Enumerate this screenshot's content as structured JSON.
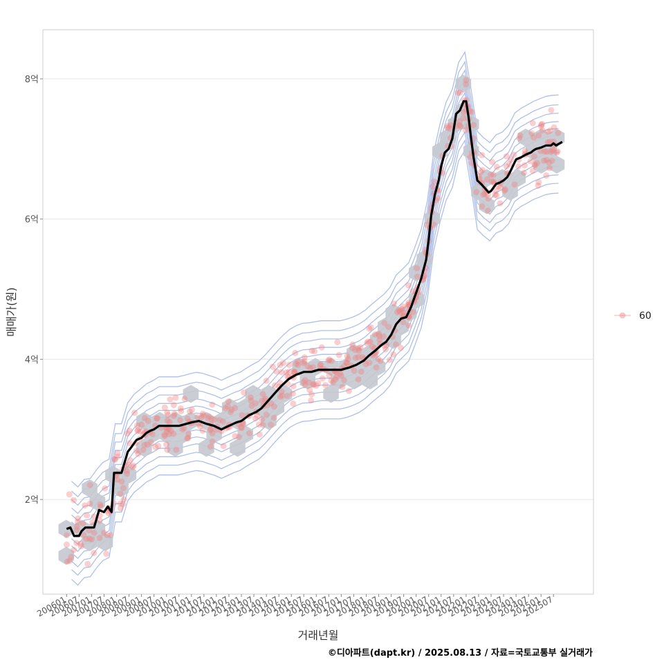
{
  "chart_data": {
    "type": "scatter",
    "xlabel": "거래년월",
    "ylabel": "매매가(원)",
    "caption": "©디아파트(dapt.kr) / 2025.08.13 / 자료=국토교통부 실거래가",
    "legend": {
      "position": "right",
      "entries": [
        "60"
      ]
    },
    "grid": true,
    "x_ticks": [
      "200601",
      "200607",
      "200701",
      "200707",
      "200801",
      "200807",
      "200901",
      "200907",
      "201001",
      "201007",
      "201101",
      "201107",
      "201201",
      "201207",
      "201301",
      "201307",
      "201401",
      "201407",
      "201501",
      "201507",
      "201601",
      "201607",
      "201701",
      "201707",
      "201801",
      "201807",
      "201901",
      "201907",
      "202001",
      "202007",
      "202101",
      "202107",
      "202201",
      "202207",
      "202301",
      "202307",
      "202401",
      "202407",
      "202501",
      "202507"
    ],
    "y_ticks": [
      "2억",
      "4억",
      "6억",
      "8억"
    ],
    "y_tick_values": [
      2,
      4,
      6,
      8
    ],
    "ylim": [
      0.65,
      8.7
    ],
    "xlim": [
      2005.05,
      2027.1
    ],
    "colors": {
      "points": "#f08080",
      "hex": "#c4c9cf",
      "line": "#000000",
      "contour": "#aebfe8",
      "grid": "#e6e6e6"
    },
    "trend_line": {
      "name": "moving-average",
      "x": [
        2006.0,
        2006.15,
        2006.3,
        2006.5,
        2006.6,
        2006.75,
        2006.9,
        2007.1,
        2007.3,
        2007.5,
        2007.65,
        2007.8,
        2007.9,
        2008.05,
        2008.2,
        2008.3,
        2008.45,
        2008.6,
        2008.8,
        2009.0,
        2009.2,
        2009.35,
        2009.5,
        2009.7,
        2010.0,
        2010.2,
        2010.5,
        2010.8,
        2011.0,
        2011.3,
        2011.6,
        2011.9,
        2012.2,
        2012.5,
        2012.8,
        2013.0,
        2013.3,
        2013.6,
        2013.8,
        2014.0,
        2014.3,
        2014.6,
        2014.9,
        2015.2,
        2015.5,
        2015.8,
        2016.1,
        2016.4,
        2016.7,
        2017.0,
        2017.3,
        2017.6,
        2017.9,
        2018.1,
        2018.35,
        2018.6,
        2018.8,
        2019.0,
        2019.2,
        2019.4,
        2019.6,
        2019.8,
        2020.0,
        2020.2,
        2020.4,
        2020.5,
        2020.6,
        2020.75,
        2020.9,
        2021.0,
        2021.15,
        2021.3,
        2021.45,
        2021.6,
        2021.75,
        2021.9,
        2022.0,
        2022.1,
        2022.2,
        2022.3,
        2022.45,
        2022.6,
        2022.8,
        2022.9,
        2023.0,
        2023.1,
        2023.2,
        2023.35,
        2023.5,
        2023.65,
        2023.8,
        2024.0,
        2024.2,
        2024.4,
        2024.6,
        2024.7,
        2024.8,
        2025.0,
        2025.2,
        2025.4,
        2025.5,
        2025.6,
        2025.75,
        2025.85
      ],
      "y": [
        1.58,
        1.6,
        1.48,
        1.48,
        1.55,
        1.6,
        1.6,
        1.6,
        1.85,
        1.82,
        1.9,
        1.82,
        2.38,
        2.38,
        2.38,
        2.5,
        2.68,
        2.75,
        2.85,
        2.88,
        2.95,
        2.98,
        3.0,
        3.05,
        3.05,
        3.05,
        3.05,
        3.08,
        3.1,
        3.12,
        3.08,
        3.05,
        3.0,
        3.05,
        3.1,
        3.12,
        3.2,
        3.25,
        3.3,
        3.38,
        3.5,
        3.62,
        3.72,
        3.78,
        3.82,
        3.82,
        3.85,
        3.85,
        3.85,
        3.85,
        3.88,
        3.92,
        3.98,
        4.05,
        4.12,
        4.2,
        4.25,
        4.35,
        4.5,
        4.58,
        4.6,
        4.75,
        4.95,
        5.15,
        5.42,
        5.7,
        6.05,
        6.35,
        6.55,
        6.75,
        6.95,
        7.0,
        7.15,
        7.5,
        7.55,
        7.68,
        7.68,
        7.45,
        7.15,
        6.88,
        6.55,
        6.5,
        6.42,
        6.38,
        6.4,
        6.45,
        6.5,
        6.52,
        6.55,
        6.6,
        6.7,
        6.85,
        6.88,
        6.92,
        6.95,
        6.98,
        7.0,
        7.02,
        7.05,
        7.05,
        7.08,
        7.05,
        7.08,
        7.1
      ]
    }
  }
}
